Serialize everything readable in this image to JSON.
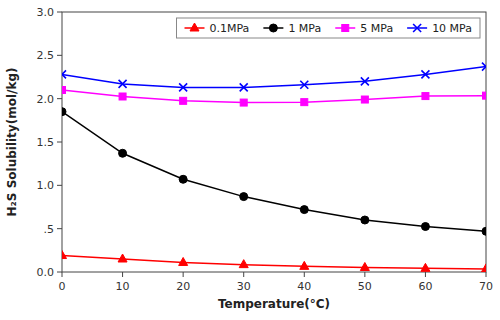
{
  "chart_data": {
    "type": "line",
    "xlabel": "Temperature(°C)",
    "ylabel": "H₂S Solubility(mol/kg)",
    "x": [
      0,
      10,
      20,
      30,
      40,
      50,
      60,
      70
    ],
    "series": [
      {
        "name": "0.1MPa",
        "color": "#ff0000",
        "marker": "triangle",
        "values": [
          0.19,
          0.15,
          0.11,
          0.085,
          0.065,
          0.052,
          0.042,
          0.036
        ]
      },
      {
        "name": "1 MPa",
        "color": "#000000",
        "marker": "circle",
        "values": [
          1.85,
          1.37,
          1.07,
          0.87,
          0.72,
          0.6,
          0.525,
          0.47
        ]
      },
      {
        "name": "5 MPa",
        "color": "#ff00ff",
        "marker": "square",
        "values": [
          2.1,
          2.025,
          1.975,
          1.955,
          1.96,
          1.99,
          2.03,
          2.035
        ]
      },
      {
        "name": "10 MPa",
        "color": "#0000ff",
        "marker": "x",
        "values": [
          2.28,
          2.17,
          2.13,
          2.13,
          2.16,
          2.2,
          2.28,
          2.37
        ]
      }
    ],
    "xlim": [
      0,
      70
    ],
    "ylim": [
      0,
      3.0
    ],
    "xticks": [
      0,
      10,
      20,
      30,
      40,
      50,
      60,
      70
    ],
    "yticks": [
      {
        "value": 0.0,
        "label": "0.0"
      },
      {
        "value": 0.5,
        "label": ".5"
      },
      {
        "value": 1.0,
        "label": "1.0"
      },
      {
        "value": 1.5,
        "label": "1.5"
      },
      {
        "value": 2.0,
        "label": "2.0"
      },
      {
        "value": 2.5,
        "label": "2.5"
      },
      {
        "value": 3.0,
        "label": "3.0"
      }
    ],
    "grid": false,
    "legend": "upper right"
  }
}
